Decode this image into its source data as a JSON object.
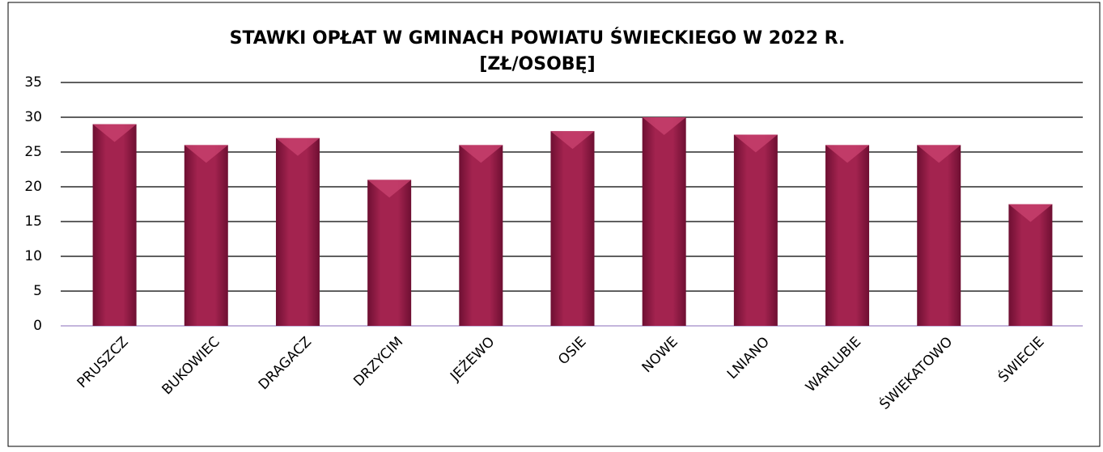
{
  "chart_data": {
    "type": "bar",
    "title": [
      "STAWKI OPŁAT W GMINACH POWIATU ŚWIECKIEGO W 2022 R.",
      "[ZŁ/OSOBĘ]"
    ],
    "categories": [
      "PRUSZCZ",
      "BUKOWIEC",
      "DRAGACZ",
      "DRZYCIM",
      "JEŻEWO",
      "OSIE",
      "NOWE",
      "LNIANO",
      "WARLUBIE",
      "ŚWIEKATOWO",
      "ŚWIECIE"
    ],
    "values": [
      29,
      26,
      27,
      21,
      26,
      28,
      30,
      27.5,
      26,
      26,
      17.5
    ],
    "color": "#9b1d4a",
    "ylim": [
      0,
      35
    ],
    "yticks": [
      0,
      5,
      10,
      15,
      20,
      25,
      30,
      35
    ],
    "grid": true
  }
}
